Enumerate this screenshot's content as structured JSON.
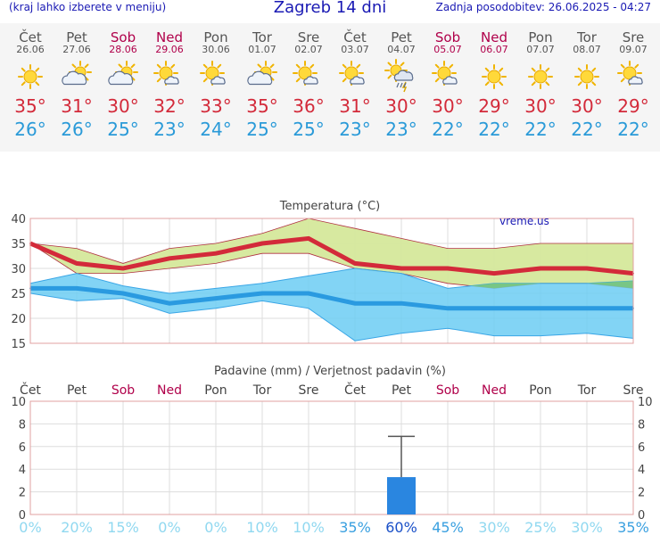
{
  "header": {
    "menu_hint": "(kraj lahko izberete v meniju)",
    "title": "Zagreb 14 dni",
    "updated": "Zadnja posodobitev: 26.06.2025 - 04:27"
  },
  "days": [
    {
      "name": "Čet",
      "date": "26.06",
      "weekend": false,
      "icon": "sun-icon",
      "tmax": "35°",
      "tmin": "26°"
    },
    {
      "name": "Pet",
      "date": "27.06",
      "weekend": false,
      "icon": "partly-cloudy-icon",
      "tmax": "31°",
      "tmin": "26°"
    },
    {
      "name": "Sob",
      "date": "28.06",
      "weekend": true,
      "icon": "partly-cloudy-icon",
      "tmax": "30°",
      "tmin": "25°"
    },
    {
      "name": "Ned",
      "date": "29.06",
      "weekend": true,
      "icon": "sun-cloud-icon",
      "tmax": "32°",
      "tmin": "23°"
    },
    {
      "name": "Pon",
      "date": "30.06",
      "weekend": false,
      "icon": "sun-cloud-icon",
      "tmax": "33°",
      "tmin": "24°"
    },
    {
      "name": "Tor",
      "date": "01.07",
      "weekend": false,
      "icon": "partly-cloudy-icon",
      "tmax": "35°",
      "tmin": "25°"
    },
    {
      "name": "Sre",
      "date": "02.07",
      "weekend": false,
      "icon": "sun-cloud-icon",
      "tmax": "36°",
      "tmin": "25°"
    },
    {
      "name": "Čet",
      "date": "03.07",
      "weekend": false,
      "icon": "sun-cloud-icon",
      "tmax": "31°",
      "tmin": "23°"
    },
    {
      "name": "Pet",
      "date": "04.07",
      "weekend": false,
      "icon": "thunderstorm-icon",
      "tmax": "30°",
      "tmin": "23°"
    },
    {
      "name": "Sob",
      "date": "05.07",
      "weekend": true,
      "icon": "sun-cloud-icon",
      "tmax": "30°",
      "tmin": "22°"
    },
    {
      "name": "Ned",
      "date": "06.07",
      "weekend": true,
      "icon": "sun-icon",
      "tmax": "29°",
      "tmin": "22°"
    },
    {
      "name": "Pon",
      "date": "07.07",
      "weekend": false,
      "icon": "sun-icon",
      "tmax": "30°",
      "tmin": "22°"
    },
    {
      "name": "Tor",
      "date": "08.07",
      "weekend": false,
      "icon": "sun-icon",
      "tmax": "30°",
      "tmin": "22°"
    },
    {
      "name": "Sre",
      "date": "09.07",
      "weekend": false,
      "icon": "sun-cloud-icon",
      "tmax": "29°",
      "tmin": "22°"
    }
  ],
  "colors": {
    "title_blue": "#1a1ab4",
    "tmax_red": "#d32a3a",
    "tmin_blue": "#2a9ad8",
    "weekend": "#b0004a",
    "max_band": "#d5e89b",
    "min_band": "#6ccdf3",
    "overlap": "#78c47a",
    "bar": "#2a86e0",
    "prob": "#60c8f0"
  },
  "chart_data": [
    {
      "type": "line",
      "title": "Temperatura (°C)",
      "watermark": "vreme.us",
      "x": [
        "Čet",
        "Pet",
        "Sob",
        "Ned",
        "Pon",
        "Tor",
        "Sre",
        "Čet",
        "Pet",
        "Sob",
        "Ned",
        "Pon",
        "Tor",
        "Sre"
      ],
      "ylim": [
        15,
        40
      ],
      "yticks": [
        15,
        20,
        25,
        30,
        35,
        40
      ],
      "grid": true,
      "series": [
        {
          "values": [
            35,
            31,
            30,
            32,
            33,
            35,
            36,
            31,
            30,
            30,
            29,
            30,
            30,
            29
          ],
          "band_low": [
            35,
            29,
            29,
            30,
            31,
            33,
            33,
            30,
            29,
            27,
            26,
            27,
            27,
            26
          ],
          "band_high": [
            35,
            34,
            31,
            34,
            35,
            37,
            40,
            38,
            36,
            34,
            34,
            35,
            35,
            35
          ]
        },
        {
          "values": [
            26,
            26,
            25,
            23,
            24,
            25,
            25,
            23,
            23,
            22,
            22,
            22,
            22,
            22
          ],
          "band_low": [
            25,
            23.5,
            24,
            21,
            22,
            23.5,
            22,
            15.5,
            17,
            18,
            16.5,
            16.5,
            17,
            16
          ],
          "band_high": [
            27,
            29,
            26.5,
            25,
            26,
            27,
            28.5,
            30,
            29,
            26,
            27,
            27,
            27,
            27.5
          ]
        }
      ]
    },
    {
      "type": "bar",
      "title": "Padavine (mm) / Verjetnost padavin (%)",
      "x": [
        "Čet",
        "Pet",
        "Sob",
        "Ned",
        "Pon",
        "Tor",
        "Sre",
        "Čet",
        "Pet",
        "Sob",
        "Ned",
        "Pon",
        "Tor",
        "Sre"
      ],
      "ylim": [
        0,
        10
      ],
      "yticks": [
        0,
        2,
        4,
        6,
        8,
        10
      ],
      "values": [
        0,
        0,
        0,
        0,
        0,
        0,
        0,
        0,
        3.3,
        0,
        0,
        0,
        0,
        0
      ],
      "error_high": [
        0,
        0,
        0,
        0,
        0,
        0,
        0,
        0,
        6.9,
        0,
        0,
        0,
        0,
        0
      ],
      "probability": [
        "0%",
        "20%",
        "15%",
        "0%",
        "0%",
        "10%",
        "10%",
        "35%",
        "60%",
        "45%",
        "30%",
        "25%",
        "30%",
        "35%"
      ]
    }
  ]
}
